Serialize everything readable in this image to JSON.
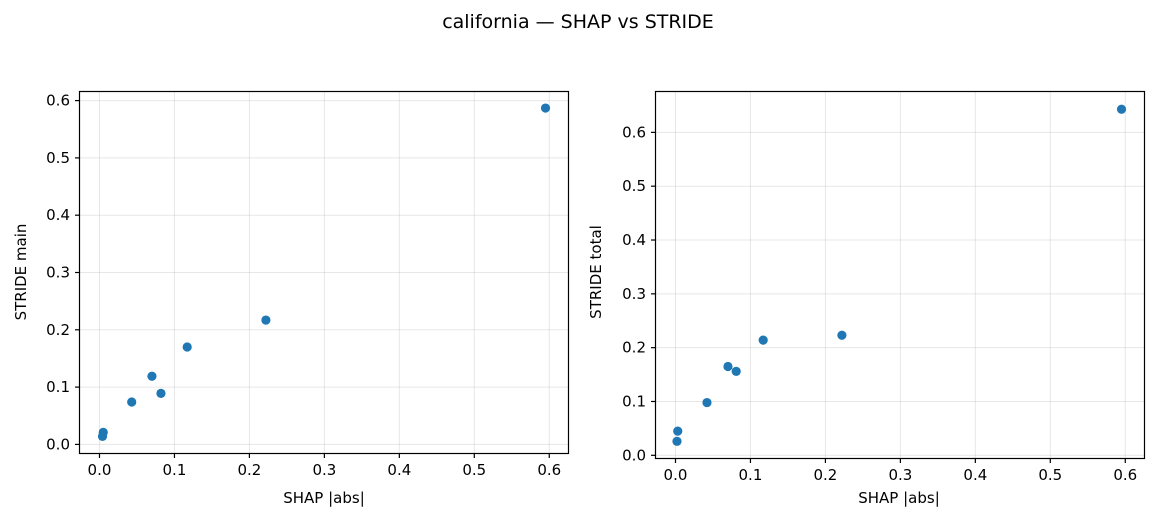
{
  "figure": {
    "title": "california — SHAP vs STRIDE",
    "point_color": "#1f77b4"
  },
  "chart_data": [
    {
      "type": "scatter",
      "title": "",
      "xlabel": "SHAP |abs|",
      "ylabel": "STRIDE main",
      "xlim": [
        -0.026,
        0.625
      ],
      "ylim": [
        -0.015,
        0.615
      ],
      "xticks": [
        0.0,
        0.1,
        0.2,
        0.3,
        0.4,
        0.5,
        0.6
      ],
      "xtick_labels": [
        "0.0",
        "0.1",
        "0.2",
        "0.3",
        "0.4",
        "0.5",
        "0.6"
      ],
      "yticks": [
        0.0,
        0.1,
        0.2,
        0.3,
        0.4,
        0.5,
        0.6
      ],
      "ytick_labels": [
        "0.0",
        "0.1",
        "0.2",
        "0.3",
        "0.4",
        "0.5",
        "0.6"
      ],
      "grid": true,
      "x": [
        0.595,
        0.222,
        0.117,
        0.07,
        0.082,
        0.043,
        0.005,
        0.004
      ],
      "y": [
        0.587,
        0.217,
        0.17,
        0.119,
        0.089,
        0.074,
        0.021,
        0.014
      ]
    },
    {
      "type": "scatter",
      "title": "",
      "xlabel": "SHAP |abs|",
      "ylabel": "STRIDE total",
      "xlim": [
        -0.026,
        0.625
      ],
      "ylim": [
        -0.005,
        0.675
      ],
      "xticks": [
        0.0,
        0.1,
        0.2,
        0.3,
        0.4,
        0.5,
        0.6
      ],
      "xtick_labels": [
        "0.0",
        "0.1",
        "0.2",
        "0.3",
        "0.4",
        "0.5",
        "0.6"
      ],
      "yticks": [
        0.0,
        0.1,
        0.2,
        0.3,
        0.4,
        0.5,
        0.6
      ],
      "ytick_labels": [
        "0.0",
        "0.1",
        "0.2",
        "0.3",
        "0.4",
        "0.5",
        "0.6"
      ],
      "grid": true,
      "x": [
        0.595,
        0.222,
        0.117,
        0.07,
        0.081,
        0.042,
        0.003,
        0.002
      ],
      "y": [
        0.643,
        0.223,
        0.214,
        0.165,
        0.156,
        0.098,
        0.045,
        0.026
      ]
    }
  ]
}
